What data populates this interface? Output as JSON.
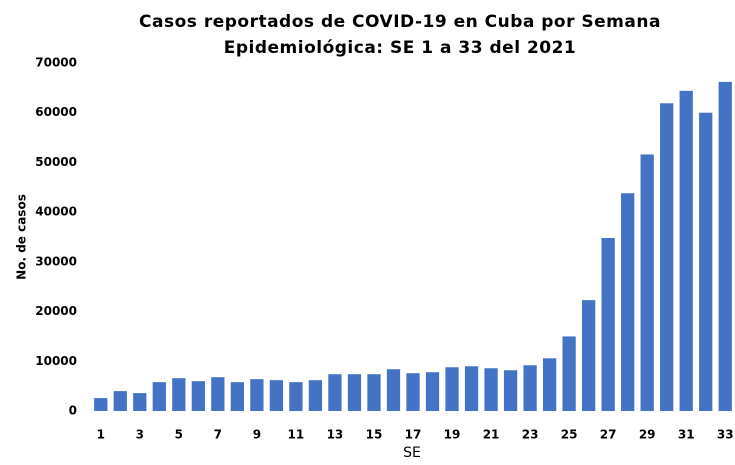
{
  "chart_data": {
    "type": "bar",
    "title": [
      "Casos reportados de COVID-19 en Cuba por Semana",
      "Epidemiológica: SE 1 a 33 del 2021"
    ],
    "x_label": "SE",
    "y_label": "No. de casos",
    "categories": [
      "1",
      null,
      "3",
      null,
      "5",
      null,
      "7",
      null,
      "9",
      null,
      "11",
      null,
      "13",
      null,
      "15",
      null,
      "17",
      null,
      "19",
      null,
      "21",
      null,
      "23",
      null,
      "25",
      null,
      "27",
      null,
      "29",
      null,
      "31",
      null,
      "33"
    ],
    "values": [
      2600,
      4000,
      3600,
      5800,
      6600,
      6000,
      6800,
      5800,
      6400,
      6200,
      5800,
      6200,
      7400,
      7400,
      7400,
      8400,
      7600,
      7800,
      8800,
      9000,
      8600,
      8200,
      9200,
      10600,
      15000,
      22300,
      34800,
      43800,
      51600,
      61900,
      64400,
      60000,
      66200
    ],
    "color": "#4472c4",
    "ylim": [
      0,
      70000
    ],
    "yticks": [
      0,
      10000,
      20000,
      30000,
      40000,
      50000,
      60000,
      70000
    ],
    "grid": false
  }
}
